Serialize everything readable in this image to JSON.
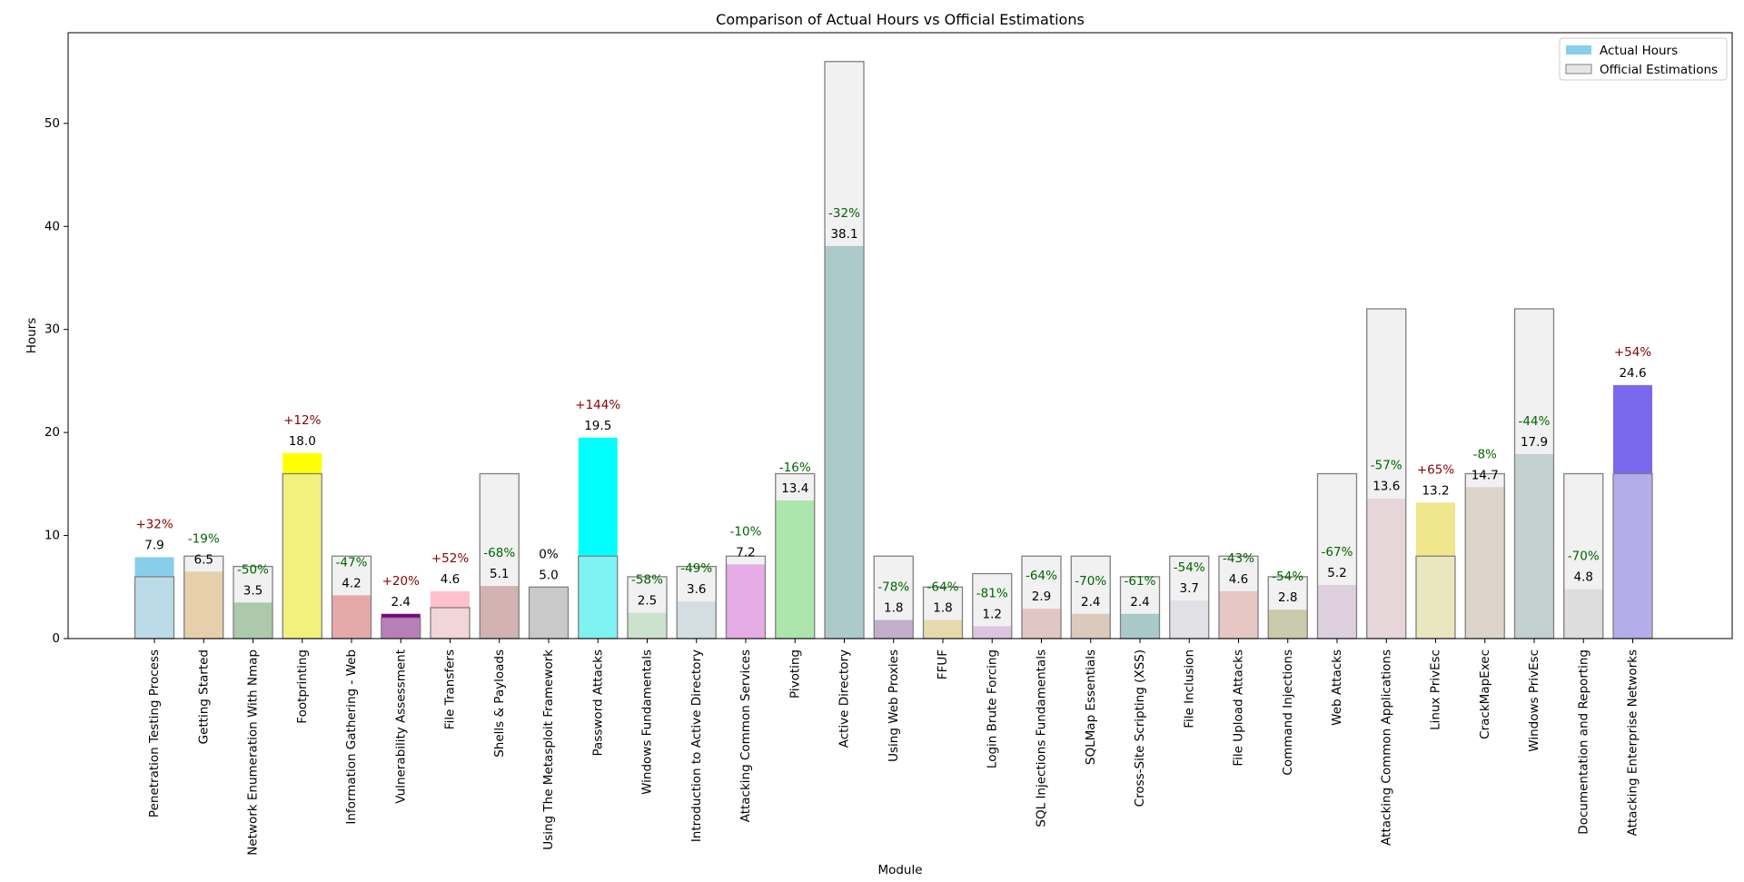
{
  "chart_data": {
    "type": "bar",
    "title": "Comparison of Actual Hours vs Official Estimations",
    "xlabel": "Module",
    "ylabel": "Hours",
    "ylim": [
      0,
      58.8
    ],
    "yticks": [
      0,
      10,
      20,
      30,
      40,
      50
    ],
    "grid": false,
    "legend_position": "top-right",
    "categories": [
      "Penetration Testing Process",
      "Getting Started",
      "Network Enumeration With Nmap",
      "Footprinting",
      "Information Gathering - Web",
      "Vulnerability Assessment",
      "File Transfers",
      "Shells & Payloads",
      "Using The Metasploit Framework",
      "Password Attacks",
      "Windows Fundamentals",
      "Introduction to Active Directory",
      "Attacking Common Services",
      "Pivoting",
      "Active Directory",
      "Using Web Proxies",
      "FFUF",
      "Login Brute Forcing",
      "SQL Injections Fundamentals",
      "SQLMap Essentials",
      "Cross-Site Scripting (XSS)",
      "File Inclusion",
      "File Upload Attacks",
      "Command Injections",
      "Web Attacks",
      "Attacking Common Applications",
      "Linux PrivEsc",
      "CrackMapExec",
      "Windows PrivEsc",
      "Documentation and Reporting",
      "Attacking Enterprise Networks"
    ],
    "series": [
      {
        "name": "Actual Hours",
        "values": [
          7.9,
          6.5,
          3.5,
          18.0,
          4.2,
          2.4,
          4.6,
          5.1,
          5.0,
          19.5,
          2.5,
          3.6,
          7.2,
          13.4,
          38.1,
          1.8,
          1.8,
          1.2,
          2.9,
          2.4,
          2.4,
          3.7,
          4.6,
          2.8,
          5.2,
          13.6,
          13.2,
          14.7,
          17.9,
          4.8,
          24.6
        ],
        "value_labels": [
          "7.9",
          "6.5",
          "3.5",
          "18.0",
          "4.2",
          "2.4",
          "4.6",
          "5.1",
          "5.0",
          "19.5",
          "2.5",
          "3.6",
          "7.2",
          "13.4",
          "38.1",
          "1.8",
          "1.8",
          "1.2",
          "2.9",
          "2.4",
          "2.4",
          "3.7",
          "4.6",
          "2.8",
          "5.2",
          "13.6",
          "13.2",
          "14.7",
          "17.9",
          "4.8",
          "24.6"
        ],
        "colors": [
          "#87ceeb",
          "#e6b566",
          "#67a767",
          "#ffff00",
          "#e65f5f",
          "#800080",
          "#ffc0cb",
          "#bc7373",
          "#a6a6a6",
          "#00ffff",
          "#aedeae",
          "#bfd4de",
          "#e566e5",
          "#66e666",
          "#68a8a8",
          "#9a6ab0",
          "#e6cc66",
          "#d1a0d4",
          "#dea0a0",
          "#cea88a",
          "#5fa6a6",
          "#dcdce5",
          "#e6a39a",
          "#a8a866",
          "#d8b6d8",
          "#e6c1c9",
          "#f0e68c",
          "#d2bfa7",
          "#98b6b6",
          "#d3d3d3",
          "#7b68ee"
        ]
      },
      {
        "name": "Official Estimations",
        "values": [
          6,
          8,
          7,
          16,
          8,
          2,
          3,
          16,
          5,
          8,
          6,
          7,
          8,
          16,
          56,
          8,
          5,
          6.3,
          8,
          8,
          6,
          8,
          8,
          6,
          16,
          32,
          8,
          16,
          32,
          16,
          16
        ],
        "color": "#e6e6e6",
        "edge_color": "#808080"
      }
    ],
    "percent_labels": [
      "+32%",
      "-19%",
      "-50%",
      "+12%",
      "-47%",
      "+20%",
      "+52%",
      "-68%",
      "0%",
      "+144%",
      "-58%",
      "-49%",
      "-10%",
      "-16%",
      "-32%",
      "-78%",
      "-64%",
      "-81%",
      "-64%",
      "-70%",
      "-61%",
      "-54%",
      "-43%",
      "-54%",
      "-67%",
      "-57%",
      "+65%",
      "-8%",
      "-44%",
      "-70%",
      "+54%"
    ],
    "percent_colors": {
      "positive": "#8b0000",
      "negative": "#006400",
      "zero": "#000000"
    }
  }
}
